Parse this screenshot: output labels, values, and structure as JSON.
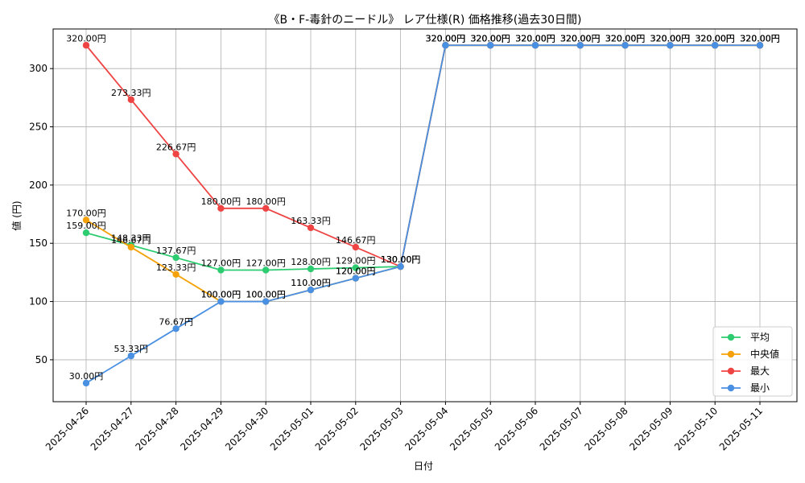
{
  "chart_data": {
    "type": "line",
    "title": "《B・F-毒針のニードル》 レア仕様(R) 価格推移(過去30日間)",
    "xlabel": "日付",
    "ylabel": "値 (円)",
    "categories": [
      "2025-04-26",
      "2025-04-27",
      "2025-04-28",
      "2025-04-29",
      "2025-04-30",
      "2025-05-01",
      "2025-05-02",
      "2025-05-03",
      "2025-05-04",
      "2025-05-05",
      "2025-05-06",
      "2025-05-07",
      "2025-05-08",
      "2025-05-09",
      "2025-05-10",
      "2025-05-11"
    ],
    "ylim": [
      14,
      334
    ],
    "yticks": [
      50,
      100,
      150,
      200,
      250,
      300
    ],
    "grid": true,
    "legend_position": "bottom-right",
    "label_suffix": "円",
    "series": [
      {
        "name": "平均",
        "color": "#2ecc71",
        "values": [
          159.0,
          148.33,
          137.67,
          127.0,
          127.0,
          128.0,
          129.0,
          130.0,
          320.0,
          320.0,
          320.0,
          320.0,
          320.0,
          320.0,
          320.0,
          320.0
        ],
        "labels": [
          "159.00円",
          "148.33円",
          "137.67円",
          "127.00円",
          "127.00円",
          "128.00円",
          "129.00円",
          "130.00円",
          "320.00円",
          "320.00円",
          "320.00円",
          "320.00円",
          "320.00円",
          "320.00円",
          "320.00円",
          "320.00円"
        ]
      },
      {
        "name": "中央値",
        "color": "#f5a20a",
        "values": [
          170.0,
          146.67,
          123.33,
          100.0,
          100.0,
          110.0,
          120.0,
          130.0,
          320.0,
          320.0,
          320.0,
          320.0,
          320.0,
          320.0,
          320.0,
          320.0
        ],
        "labels": [
          "170.00円",
          "146.67円",
          "123.33円",
          "100.00円",
          "100.00円",
          "110.00円",
          "120.00円",
          "130.00円",
          "320.00円",
          "320.00円",
          "320.00円",
          "320.00円",
          "320.00円",
          "320.00円",
          "320.00円",
          "320.00円"
        ]
      },
      {
        "name": "最大",
        "color": "#ef4444",
        "values": [
          320.0,
          273.33,
          226.67,
          180.0,
          180.0,
          163.33,
          146.67,
          130.0,
          320.0,
          320.0,
          320.0,
          320.0,
          320.0,
          320.0,
          320.0,
          320.0
        ],
        "labels": [
          "320.00円",
          "273.33円",
          "226.67円",
          "180.00円",
          "180.00円",
          "163.33円",
          "146.67円",
          "130.00円",
          "320.00円",
          "320.00円",
          "320.00円",
          "320.00円",
          "320.00円",
          "320.00円",
          "320.00円",
          "320.00円"
        ]
      },
      {
        "name": "最小",
        "color": "#4a90e2",
        "values": [
          30.0,
          53.33,
          76.67,
          100.0,
          100.0,
          110.0,
          120.0,
          130.0,
          320.0,
          320.0,
          320.0,
          320.0,
          320.0,
          320.0,
          320.0,
          320.0
        ],
        "labels": [
          "30.00円",
          "53.33円",
          "76.67円",
          "100.00円",
          "100.00円",
          "110.00円",
          "120.00円",
          "130.00円",
          "320.00円",
          "320.00円",
          "320.00円",
          "320.00円",
          "320.00円",
          "320.00円",
          "320.00円",
          "320.00円"
        ]
      }
    ]
  }
}
